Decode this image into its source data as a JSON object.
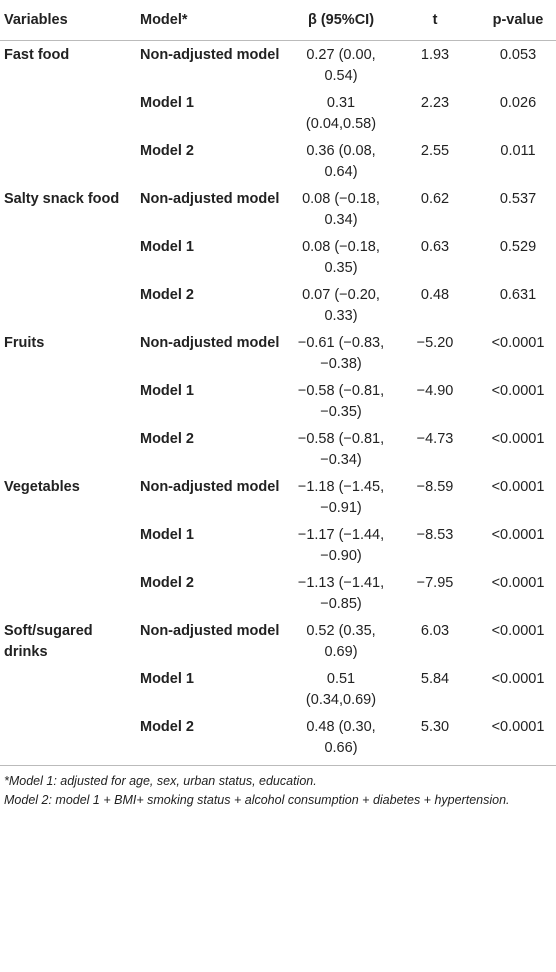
{
  "table": {
    "header": [
      "Variables",
      "Model*",
      "β (95%CI)",
      "t",
      "p-value"
    ],
    "groups": [
      {
        "variable": "Fast food",
        "rows": [
          {
            "model": "Non-adjusted model",
            "beta": "0.27 (0.00, 0.54)",
            "t": "1.93",
            "p": "0.053"
          },
          {
            "model": "Model 1",
            "beta": "0.31 (0.04,0.58)",
            "t": "2.23",
            "p": "0.026"
          },
          {
            "model": "Model 2",
            "beta": "0.36 (0.08, 0.64)",
            "t": "2.55",
            "p": "0.011"
          }
        ]
      },
      {
        "variable": "Salty snack food",
        "rows": [
          {
            "model": "Non-adjusted model",
            "beta": "0.08 (−0.18, 0.34)",
            "t": "0.62",
            "p": "0.537"
          },
          {
            "model": "Model 1",
            "beta": "0.08 (−0.18, 0.35)",
            "t": "0.63",
            "p": "0.529"
          },
          {
            "model": "Model 2",
            "beta": "0.07 (−0.20, 0.33)",
            "t": "0.48",
            "p": "0.631"
          }
        ]
      },
      {
        "variable": "Fruits",
        "rows": [
          {
            "model": "Non-adjusted model",
            "beta": "−0.61 (−0.83, −0.38)",
            "t": "−5.20",
            "p": "<0.0001"
          },
          {
            "model": "Model 1",
            "beta": "−0.58 (−0.81, −0.35)",
            "t": "−4.90",
            "p": "<0.0001"
          },
          {
            "model": "Model 2",
            "beta": "−0.58 (−0.81, −0.34)",
            "t": "−4.73",
            "p": "<0.0001"
          }
        ]
      },
      {
        "variable": "Vegetables",
        "rows": [
          {
            "model": "Non-adjusted model",
            "beta": "−1.18 (−1.45, −0.91)",
            "t": "−8.59",
            "p": "<0.0001"
          },
          {
            "model": "Model 1",
            "beta": "−1.17 (−1.44, −0.90)",
            "t": "−8.53",
            "p": "<0.0001"
          },
          {
            "model": "Model 2",
            "beta": "−1.13 (−1.41, −0.85)",
            "t": "−7.95",
            "p": "<0.0001"
          }
        ]
      },
      {
        "variable": "Soft/sugared drinks",
        "rows": [
          {
            "model": "Non-adjusted model",
            "beta": "0.52 (0.35, 0.69)",
            "t": "6.03",
            "p": "<0.0001"
          },
          {
            "model": "Model 1",
            "beta": "0.51 (0.34,0.69)",
            "t": "5.84",
            "p": "<0.0001"
          },
          {
            "model": "Model 2",
            "beta": "0.48 (0.30, 0.66)",
            "t": "5.30",
            "p": "<0.0001"
          }
        ]
      }
    ],
    "footnotes": [
      "*Model 1: adjusted for age, sex, urban status, education.",
      "Model 2: model 1 + BMI+ smoking status + alcohol consumption + diabetes + hypertension."
    ]
  }
}
